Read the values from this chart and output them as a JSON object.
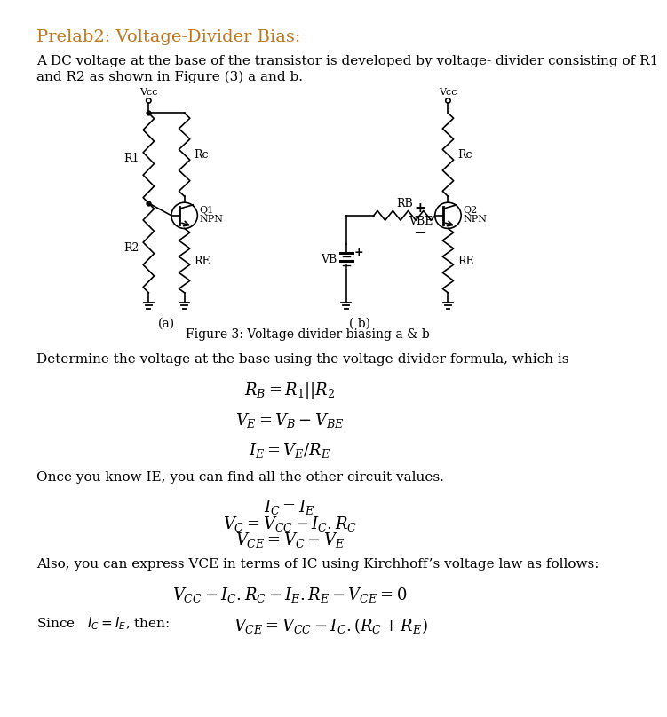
{
  "title": "Prelab2: Voltage-Divider Bias:",
  "title_color": "#C07820",
  "bg_color": "#ffffff",
  "body_text_color": "#000000",
  "intro_text_line1": "A DC voltage at the base of the transistor is developed by voltage- divider consisting of R1",
  "intro_text_line2": "and R2 as shown in Figure (3) a and b.",
  "figure_caption": "Figure 3: Voltage divider biasing a & b",
  "label_a": "(a)",
  "label_b": "( b)",
  "section1_text": "Determine the voltage at the base using the voltage-divider formula, which is",
  "eq1": "$R_B = R_1||R_2$",
  "eq2": "$V_E = V_B - V_{BE}$",
  "eq3": "$I_E = V_E/R_E$",
  "section2_text": "Once you know IE, you can find all the other circuit values.",
  "eq4a": "$I_C = I_E$",
  "eq4b": "$V_C = V_{CC} - I_C.R_C$",
  "eq4c": "$V_{CE} = V_C - V_E$",
  "section3_text": "Also, you can express VCE in terms of IC using Kirchhoff’s voltage law as follows:",
  "eq5": "$V_{CC} - I_C.R_C - I_E.R_E - V_{CE} = 0$",
  "since_text": "Since   $I_C = I_E$, then:",
  "eq6": "$V_{CE} = V_{CC} - I_C.(R_C + R_E)$"
}
